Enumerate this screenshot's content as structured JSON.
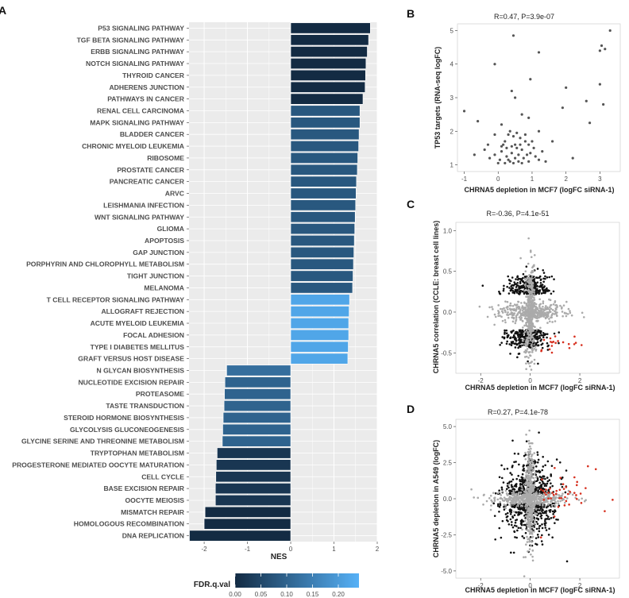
{
  "panels": {
    "A": "A",
    "B": "B",
    "C": "C",
    "D": "D"
  },
  "chart_data": [
    {
      "type": "bar",
      "panel": "A",
      "orientation": "horizontal",
      "xlabel": "NES",
      "xlim": [
        -2.35,
        2.0
      ],
      "xticks": [
        -2,
        -1,
        0,
        1,
        2
      ],
      "categories": [
        "P53 SIGNALING PATHWAY",
        "TGF BETA SIGNALING PATHWAY",
        "ERBB SIGNALING PATHWAY",
        "NOTCH SIGNALING PATHWAY",
        "THYROID CANCER",
        "ADHERENS JUNCTION",
        "PATHWAYS IN CANCER",
        "RENAL CELL CARCINOMA",
        "MAPK SIGNALING PATHWAY",
        "BLADDER CANCER",
        "CHRONIC MYELOID LEUKEMIA",
        "RIBOSOME",
        "PROSTATE CANCER",
        "PANCREATIC CANCER",
        "ARVC",
        "LEISHMANIA INFECTION",
        "WNT SIGNALING PATHWAY",
        "GLIOMA",
        "APOPTOSIS",
        "GAP JUNCTION",
        "PORPHYRIN AND CHLOROPHYLL METABOLISM",
        "TIGHT JUNCTION",
        "MELANOMA",
        "T CELL RECEPTOR SIGNALING PATHWAY",
        "ALLOGRAFT REJECTION",
        "ACUTE MYELOID LEUKEMIA",
        "FOCAL ADHESION",
        "TYPE I DIABETES MELLITUS",
        "GRAFT VERSUS HOST DISEASE",
        "N GLYCAN BIOSYNTHESIS",
        "NUCLEOTIDE EXCISION REPAIR",
        "PROTEASOME",
        "TASTE TRANSDUCTION",
        "STEROID HORMONE BIOSYNTHESIS",
        "GLYCOLYSIS GLUCONEOGENESIS",
        "GLYCINE SERINE AND THREONINE METABOLISM",
        "TRYPTOPHAN METABOLISM",
        "PROGESTERONE MEDIATED OOCYTE MATURATION",
        "CELL CYCLE",
        "BASE EXCISION REPAIR",
        "OOCYTE MEIOSIS",
        "MISMATCH REPAIR",
        "HOMOLOGOUS RECOMBINATION",
        "DNA REPLICATION"
      ],
      "values": [
        1.84,
        1.8,
        1.77,
        1.74,
        1.73,
        1.72,
        1.67,
        1.6,
        1.6,
        1.58,
        1.57,
        1.55,
        1.54,
        1.52,
        1.51,
        1.5,
        1.49,
        1.48,
        1.47,
        1.46,
        1.45,
        1.44,
        1.43,
        1.36,
        1.35,
        1.34,
        1.34,
        1.33,
        1.32,
        -1.48,
        -1.52,
        -1.53,
        -1.54,
        -1.56,
        -1.57,
        -1.58,
        -1.7,
        -1.72,
        -1.73,
        -1.74,
        -1.74,
        -1.98,
        -2.0,
        -2.34
      ],
      "fdr": [
        0.0,
        0.0,
        0.0,
        0.0,
        0.0,
        0.0,
        0.0,
        0.08,
        0.08,
        0.08,
        0.08,
        0.08,
        0.08,
        0.08,
        0.08,
        0.08,
        0.08,
        0.08,
        0.08,
        0.08,
        0.08,
        0.08,
        0.08,
        0.22,
        0.22,
        0.22,
        0.22,
        0.22,
        0.22,
        0.12,
        0.1,
        0.1,
        0.1,
        0.1,
        0.1,
        0.1,
        0.02,
        0.02,
        0.02,
        0.02,
        0.02,
        0.0,
        0.0,
        0.0
      ],
      "legend": {
        "title": "FDR.q.val",
        "ticks": [
          "0.00",
          "0.05",
          "0.10",
          "0.15",
          "0.20"
        ],
        "range": [
          0.0,
          0.24
        ],
        "color_low": "#132b43",
        "color_high": "#56b1f7",
        "placement": "bottom"
      }
    },
    {
      "type": "scatter",
      "panel": "B",
      "title": "R=0.47, P=3.9e-07",
      "xlabel": "CHRNA5 depletion in MCF7 (logFC siRNA-1)",
      "ylabel": "TP53 targets (RNA-seq logFC)",
      "xlim": [
        -1.2,
        3.6
      ],
      "ylim": [
        0.8,
        5.2
      ],
      "xticks": [
        -1,
        0,
        1,
        2,
        3
      ],
      "yticks": [
        1,
        2,
        3,
        4,
        5
      ],
      "point_color": "#555555",
      "points": [
        [
          -0.1,
          4.0
        ],
        [
          0.45,
          4.85
        ],
        [
          1.2,
          4.35
        ],
        [
          3.3,
          5.0
        ],
        [
          3.05,
          4.55
        ],
        [
          3.0,
          4.4
        ],
        [
          3.15,
          4.45
        ],
        [
          0.95,
          3.55
        ],
        [
          3.0,
          3.4
        ],
        [
          3.1,
          2.8
        ],
        [
          2.6,
          2.9
        ],
        [
          2.7,
          2.25
        ],
        [
          1.9,
          2.7
        ],
        [
          2.0,
          3.3
        ],
        [
          0.4,
          3.2
        ],
        [
          -1.0,
          2.6
        ],
        [
          0.7,
          2.5
        ],
        [
          0.5,
          3.0
        ],
        [
          0.9,
          2.4
        ],
        [
          1.2,
          2.0
        ],
        [
          -0.6,
          2.3
        ],
        [
          0.1,
          2.2
        ],
        [
          0.35,
          2.0
        ],
        [
          -0.1,
          1.9
        ],
        [
          0.3,
          1.9
        ],
        [
          0.45,
          1.85
        ],
        [
          0.65,
          1.8
        ],
        [
          0.8,
          1.7
        ],
        [
          0.2,
          1.7
        ],
        [
          0.5,
          1.6
        ],
        [
          0.9,
          1.6
        ],
        [
          1.0,
          1.7
        ],
        [
          -0.3,
          1.6
        ],
        [
          0.1,
          1.55
        ],
        [
          0.25,
          1.5
        ],
        [
          0.55,
          1.5
        ],
        [
          0.7,
          1.45
        ],
        [
          1.05,
          1.5
        ],
        [
          1.3,
          1.4
        ],
        [
          0.1,
          1.4
        ],
        [
          0.4,
          1.35
        ],
        [
          0.6,
          1.3
        ],
        [
          0.85,
          1.3
        ],
        [
          -0.1,
          1.3
        ],
        [
          0.25,
          1.25
        ],
        [
          0.5,
          1.2
        ],
        [
          0.75,
          1.2
        ],
        [
          1.1,
          1.25
        ],
        [
          0.05,
          1.15
        ],
        [
          0.35,
          1.1
        ],
        [
          0.6,
          1.1
        ],
        [
          0.9,
          1.1
        ],
        [
          -0.25,
          1.2
        ],
        [
          0.2,
          1.05
        ],
        [
          0.45,
          1.05
        ],
        [
          0.7,
          1.05
        ],
        [
          1.4,
          1.1
        ],
        [
          2.2,
          1.2
        ],
        [
          -0.7,
          1.3
        ],
        [
          -0.4,
          1.45
        ],
        [
          1.6,
          1.7
        ],
        [
          0.55,
          1.95
        ],
        [
          0.15,
          1.6
        ],
        [
          0.8,
          1.9
        ],
        [
          0.3,
          1.15
        ],
        [
          0.65,
          1.6
        ],
        [
          0.95,
          1.35
        ],
        [
          0.0,
          1.05
        ],
        [
          1.2,
          1.15
        ],
        [
          0.4,
          1.55
        ]
      ]
    },
    {
      "type": "scatter",
      "panel": "C",
      "title": "R=-0.36, P=4.1e-51",
      "xlabel": "CHRNA5 depletion in MCF7 (logFC siRNA-1)",
      "ylabel": "CHRNA5 correlation (CCLE: breast cell lines)",
      "xlim": [
        -3.0,
        3.6
      ],
      "ylim": [
        -0.75,
        1.1
      ],
      "xticks": [
        -2,
        0,
        2
      ],
      "yticks": [
        -0.5,
        0.0,
        0.5,
        1.0
      ],
      "colors": {
        "background": "#aaaaaa",
        "significant": "#111111",
        "highlight": "#d7301f"
      }
    },
    {
      "type": "scatter",
      "panel": "D",
      "title": "R=0.27, P=4.1e-78",
      "xlabel": "CHRNA5 depletion in MCF7 (logFC siRNA-1)",
      "ylabel": "CHRNA5 depletion in A549 (logFC)",
      "xlim": [
        -3.0,
        3.6
      ],
      "ylim": [
        -5.5,
        5.5
      ],
      "xticks": [
        -2,
        0,
        2
      ],
      "yticks": [
        -5.0,
        -2.5,
        0.0,
        2.5,
        5.0
      ],
      "colors": {
        "background": "#aaaaaa",
        "significant": "#111111",
        "highlight": "#d7301f"
      }
    }
  ]
}
